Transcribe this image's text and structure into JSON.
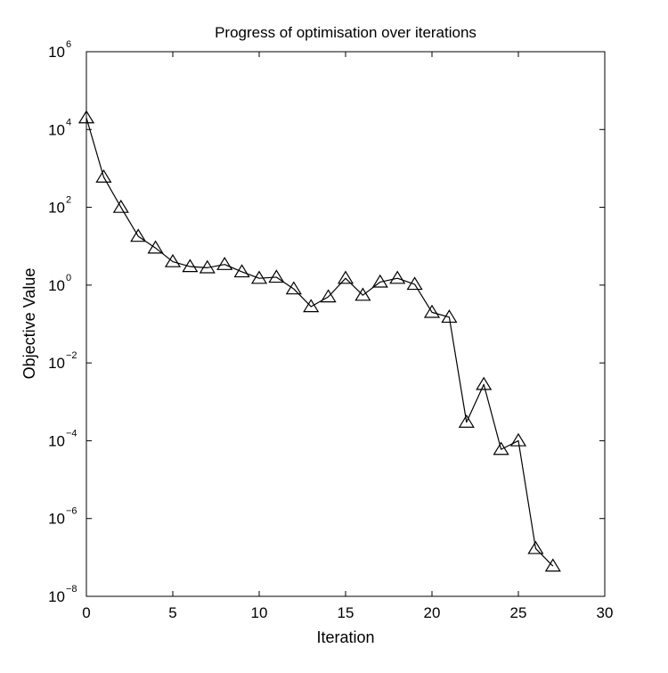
{
  "chart_data": {
    "type": "line",
    "title": "Progress of optimisation over iterations",
    "xlabel": "Iteration",
    "ylabel": "Objective Value",
    "xlim": [
      0,
      30
    ],
    "ylim": [
      1e-08,
      1000000.0
    ],
    "yscale": "log",
    "grid": false,
    "marker": "triangle",
    "line_color": "#000000",
    "x_ticks": [
      0,
      5,
      10,
      15,
      20,
      25,
      30
    ],
    "x_tick_labels": [
      "0",
      "5",
      "10",
      "15",
      "20",
      "25",
      "30"
    ],
    "y_ticks": [
      1e-08,
      1e-06,
      0.0001,
      0.01,
      1.0,
      100.0,
      10000.0,
      1000000.0
    ],
    "y_tick_labels": [
      {
        "base": "10",
        "exp": "−8"
      },
      {
        "base": "10",
        "exp": "−6"
      },
      {
        "base": "10",
        "exp": "−4"
      },
      {
        "base": "10",
        "exp": "−2"
      },
      {
        "base": "10",
        "exp": "0"
      },
      {
        "base": "10",
        "exp": "2"
      },
      {
        "base": "10",
        "exp": "4"
      },
      {
        "base": "10",
        "exp": "6"
      }
    ],
    "series": [
      {
        "x": [
          0,
          1,
          2,
          3,
          4,
          5,
          6,
          7,
          8,
          9,
          10,
          11,
          12,
          13,
          14,
          15,
          16,
          17,
          18,
          19,
          20,
          21,
          22,
          23,
          24,
          25,
          26,
          27
        ],
        "y": [
          20000,
          600,
          100,
          18,
          9,
          4,
          3,
          2.8,
          3.4,
          2.2,
          1.5,
          1.6,
          0.8,
          0.28,
          0.5,
          1.5,
          0.55,
          1.2,
          1.5,
          1.05,
          0.2,
          0.15,
          0.0003,
          0.0028,
          6e-05,
          0.0001,
          1.7e-07,
          6e-08
        ]
      }
    ]
  }
}
